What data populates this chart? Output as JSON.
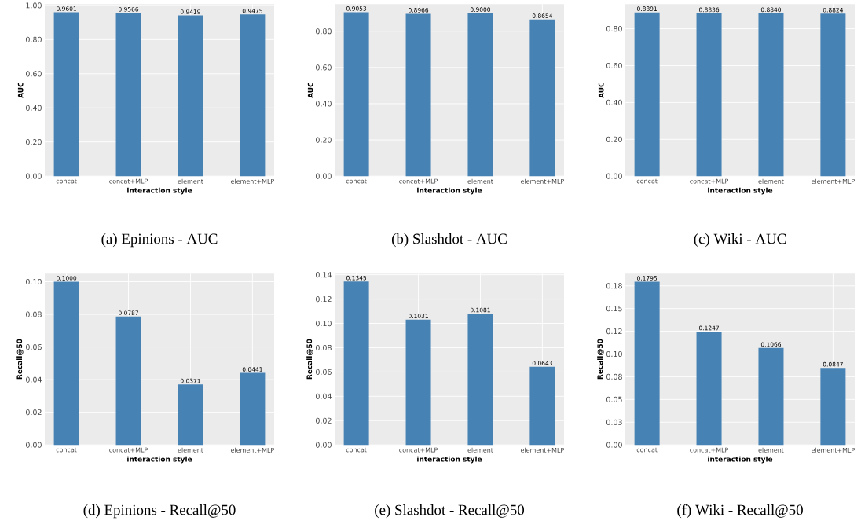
{
  "chart_data": [
    {
      "type": "bar",
      "title": "(a) Epinions - AUC",
      "xlabel": "interaction style",
      "ylabel": "AUC",
      "categories": [
        "concat",
        "concat+MLP",
        "element",
        "element+MLP"
      ],
      "values": [
        0.9601,
        0.9566,
        0.9419,
        0.9475
      ],
      "value_labels": [
        "0.9601",
        "0.9566",
        "0.9419",
        "0.9475"
      ],
      "color": "#4682b4",
      "ylim": [
        0,
        1.008
      ],
      "yticks": [
        {
          "value": 0,
          "label": "0.00"
        },
        {
          "value": 0.2,
          "label": "0.20"
        },
        {
          "value": 0.4,
          "label": "0.40"
        },
        {
          "value": 0.6,
          "label": "0.60"
        },
        {
          "value": 0.8,
          "label": "0.80"
        },
        {
          "value": 1.0,
          "label": "1.00"
        }
      ],
      "grid": true
    },
    {
      "type": "bar",
      "title": "(b) Slashdot - AUC",
      "xlabel": "interaction style",
      "ylabel": "AUC",
      "categories": [
        "concat",
        "concat+MLP",
        "element",
        "element+MLP"
      ],
      "values": [
        0.9053,
        0.8966,
        0.9,
        0.8654
      ],
      "value_labels": [
        "0.9053",
        "0.8966",
        "0.9000",
        "0.8654"
      ],
      "color": "#4682b4",
      "ylim": [
        0,
        0.95
      ],
      "yticks": [
        {
          "value": 0,
          "label": "0.00"
        },
        {
          "value": 0.2,
          "label": "0.20"
        },
        {
          "value": 0.4,
          "label": "0.40"
        },
        {
          "value": 0.6,
          "label": "0.60"
        },
        {
          "value": 0.8,
          "label": "0.80"
        }
      ],
      "grid": true
    },
    {
      "type": "bar",
      "title": "(c) Wiki - AUC",
      "xlabel": "interaction style",
      "ylabel": "AUC",
      "categories": [
        "concat",
        "concat+MLP",
        "element",
        "element+MLP"
      ],
      "values": [
        0.8891,
        0.8836,
        0.884,
        0.8824
      ],
      "value_labels": [
        "0.8891",
        "0.8836",
        "0.8840",
        "0.8824"
      ],
      "color": "#4682b4",
      "ylim": [
        0,
        0.934
      ],
      "yticks": [
        {
          "value": 0,
          "label": "0.00"
        },
        {
          "value": 0.2,
          "label": "0.20"
        },
        {
          "value": 0.4,
          "label": "0.40"
        },
        {
          "value": 0.6,
          "label": "0.60"
        },
        {
          "value": 0.8,
          "label": "0.80"
        }
      ],
      "grid": true
    },
    {
      "type": "bar",
      "title": "(d) Epinions - Recall@50",
      "xlabel": "interaction style",
      "ylabel": "Recall@50",
      "categories": [
        "concat",
        "concat+MLP",
        "element",
        "element+MLP"
      ],
      "values": [
        0.1,
        0.0787,
        0.0371,
        0.0441
      ],
      "value_labels": [
        "0.1000",
        "0.0787",
        "0.0371",
        "0.0441"
      ],
      "color": "#4682b4",
      "ylim": [
        0,
        0.105
      ],
      "yticks": [
        {
          "value": 0,
          "label": "0.00"
        },
        {
          "value": 0.02,
          "label": "0.02"
        },
        {
          "value": 0.04,
          "label": "0.04"
        },
        {
          "value": 0.06,
          "label": "0.06"
        },
        {
          "value": 0.08,
          "label": "0.08"
        },
        {
          "value": 0.1,
          "label": "0.10"
        }
      ],
      "grid": true
    },
    {
      "type": "bar",
      "title": "(e) Slashdot - Recall@50",
      "xlabel": "interaction style",
      "ylabel": "Recall@50",
      "categories": [
        "concat",
        "concat+MLP",
        "element",
        "element+MLP"
      ],
      "values": [
        0.1345,
        0.1031,
        0.1081,
        0.0643
      ],
      "value_labels": [
        "0.1345",
        "0.1031",
        "0.1081",
        "0.0643"
      ],
      "color": "#4682b4",
      "ylim": [
        0,
        0.141
      ],
      "yticks": [
        {
          "value": 0,
          "label": "0.00"
        },
        {
          "value": 0.02,
          "label": "0.02"
        },
        {
          "value": 0.04,
          "label": "0.04"
        },
        {
          "value": 0.06,
          "label": "0.06"
        },
        {
          "value": 0.08,
          "label": "0.08"
        },
        {
          "value": 0.1,
          "label": "0.10"
        },
        {
          "value": 0.12,
          "label": "0.12"
        },
        {
          "value": 0.14,
          "label": "0.14"
        }
      ],
      "grid": true
    },
    {
      "type": "bar",
      "title": "(f) Wiki - Recall@50",
      "xlabel": "interaction style",
      "ylabel": "Recall@50",
      "categories": [
        "concat",
        "concat+MLP",
        "element",
        "element+MLP"
      ],
      "values": [
        0.1795,
        0.1247,
        0.1066,
        0.0847
      ],
      "value_labels": [
        "0.1795",
        "0.1247",
        "0.1066",
        "0.0847"
      ],
      "color": "#4682b4",
      "ylim": [
        0,
        0.1885
      ],
      "yticks": [
        {
          "value": 0,
          "label": "0.00"
        },
        {
          "value": 0.025,
          "label": "0.03"
        },
        {
          "value": 0.05,
          "label": "0.05"
        },
        {
          "value": 0.075,
          "label": "0.08"
        },
        {
          "value": 0.1,
          "label": "0.10"
        },
        {
          "value": 0.125,
          "label": "0.12"
        },
        {
          "value": 0.15,
          "label": "0.15"
        },
        {
          "value": 0.175,
          "label": "0.18"
        }
      ],
      "grid": true
    }
  ]
}
